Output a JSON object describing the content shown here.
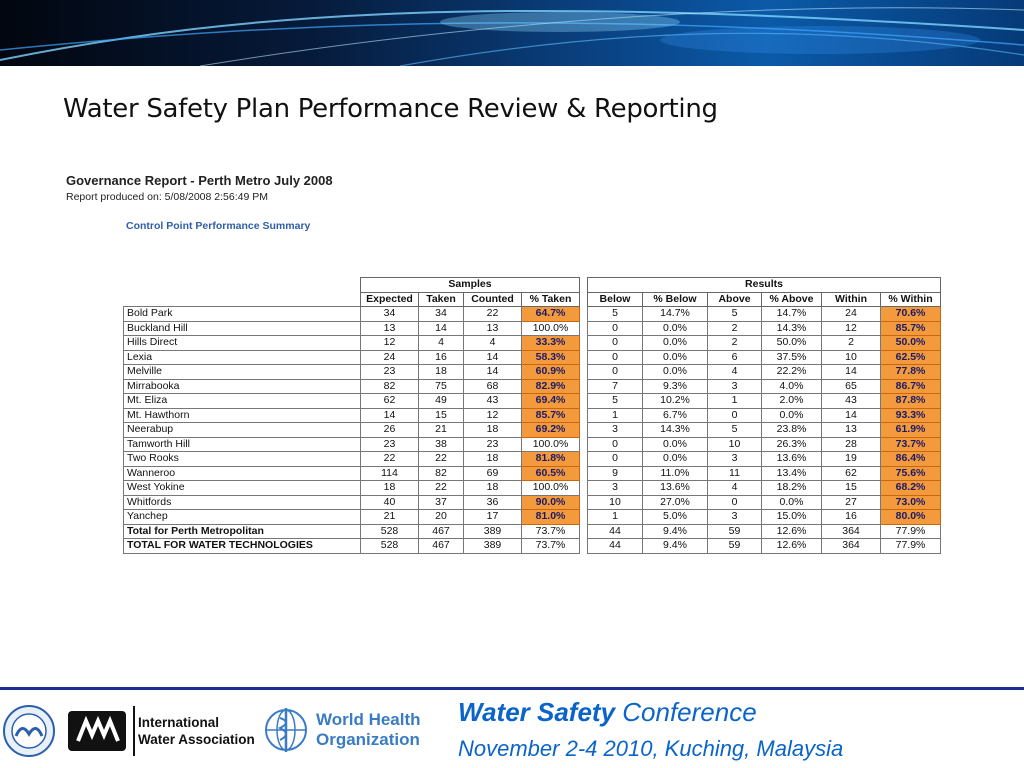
{
  "slide": {
    "title": "Water Safety Plan Performance Review & Reporting"
  },
  "report": {
    "title": "Governance Report - Perth Metro July 2008",
    "produced": "Report produced on: 5/08/2008 2:56:49 PM",
    "section": "Control Point Performance Summary"
  },
  "table": {
    "groups": {
      "samples": "Samples",
      "results": "Results"
    },
    "headers": [
      "Expected",
      "Taken",
      "Counted",
      "% Taken",
      "Below",
      "% Below",
      "Above",
      "% Above",
      "Within",
      "% Within"
    ],
    "rows": [
      {
        "name": "Bold Park",
        "cells": [
          "34",
          "34",
          "22",
          "64.7%",
          "5",
          "14.7%",
          "5",
          "14.7%",
          "24",
          "70.6%"
        ],
        "hl_taken": true,
        "hl_within": true
      },
      {
        "name": "Buckland Hill",
        "cells": [
          "13",
          "14",
          "13",
          "100.0%",
          "0",
          "0.0%",
          "2",
          "14.3%",
          "12",
          "85.7%"
        ],
        "hl_taken": false,
        "hl_within": true
      },
      {
        "name": "Hills Direct",
        "cells": [
          "12",
          "4",
          "4",
          "33.3%",
          "0",
          "0.0%",
          "2",
          "50.0%",
          "2",
          "50.0%"
        ],
        "hl_taken": true,
        "hl_within": true
      },
      {
        "name": "Lexia",
        "cells": [
          "24",
          "16",
          "14",
          "58.3%",
          "0",
          "0.0%",
          "6",
          "37.5%",
          "10",
          "62.5%"
        ],
        "hl_taken": true,
        "hl_within": true
      },
      {
        "name": "Melville",
        "cells": [
          "23",
          "18",
          "14",
          "60.9%",
          "0",
          "0.0%",
          "4",
          "22.2%",
          "14",
          "77.8%"
        ],
        "hl_taken": true,
        "hl_within": true
      },
      {
        "name": "Mirrabooka",
        "cells": [
          "82",
          "75",
          "68",
          "82.9%",
          "7",
          "9.3%",
          "3",
          "4.0%",
          "65",
          "86.7%"
        ],
        "hl_taken": true,
        "hl_within": true
      },
      {
        "name": "Mt. Eliza",
        "cells": [
          "62",
          "49",
          "43",
          "69.4%",
          "5",
          "10.2%",
          "1",
          "2.0%",
          "43",
          "87.8%"
        ],
        "hl_taken": true,
        "hl_within": true
      },
      {
        "name": "Mt. Hawthorn",
        "cells": [
          "14",
          "15",
          "12",
          "85.7%",
          "1",
          "6.7%",
          "0",
          "0.0%",
          "14",
          "93.3%"
        ],
        "hl_taken": true,
        "hl_within": true
      },
      {
        "name": "Neerabup",
        "cells": [
          "26",
          "21",
          "18",
          "69.2%",
          "3",
          "14.3%",
          "5",
          "23.8%",
          "13",
          "61.9%"
        ],
        "hl_taken": true,
        "hl_within": true
      },
      {
        "name": "Tamworth Hill",
        "cells": [
          "23",
          "38",
          "23",
          "100.0%",
          "0",
          "0.0%",
          "10",
          "26.3%",
          "28",
          "73.7%"
        ],
        "hl_taken": false,
        "hl_within": true
      },
      {
        "name": "Two Rooks",
        "cells": [
          "22",
          "22",
          "18",
          "81.8%",
          "0",
          "0.0%",
          "3",
          "13.6%",
          "19",
          "86.4%"
        ],
        "hl_taken": true,
        "hl_within": true
      },
      {
        "name": "Wanneroo",
        "cells": [
          "114",
          "82",
          "69",
          "60.5%",
          "9",
          "11.0%",
          "11",
          "13.4%",
          "62",
          "75.6%"
        ],
        "hl_taken": true,
        "hl_within": true
      },
      {
        "name": "West Yokine",
        "cells": [
          "18",
          "22",
          "18",
          "100.0%",
          "3",
          "13.6%",
          "4",
          "18.2%",
          "15",
          "68.2%"
        ],
        "hl_taken": false,
        "hl_within": true
      },
      {
        "name": "Whitfords",
        "cells": [
          "40",
          "37",
          "36",
          "90.0%",
          "10",
          "27.0%",
          "0",
          "0.0%",
          "27",
          "73.0%"
        ],
        "hl_taken": true,
        "hl_within": true
      },
      {
        "name": "Yanchep",
        "cells": [
          "21",
          "20",
          "17",
          "81.0%",
          "1",
          "5.0%",
          "3",
          "15.0%",
          "16",
          "80.0%"
        ],
        "hl_taken": true,
        "hl_within": true
      },
      {
        "name": "Total for Perth Metropolitan",
        "cells": [
          "528",
          "467",
          "389",
          "73.7%",
          "44",
          "9.4%",
          "59",
          "12.6%",
          "364",
          "77.9%"
        ],
        "hl_taken": false,
        "hl_within": false,
        "total": true
      },
      {
        "name": "TOTAL FOR WATER TECHNOLOGIES",
        "cells": [
          "528",
          "467",
          "389",
          "73.7%",
          "44",
          "9.4%",
          "59",
          "12.6%",
          "364",
          "77.9%"
        ],
        "hl_taken": false,
        "hl_within": false,
        "total": true
      }
    ],
    "highlight_color": "#f39a3c"
  },
  "footer": {
    "logos": {
      "iwa_mark": "IWA",
      "iwa_name_line1": "International",
      "iwa_name_line2": "Water Association",
      "who_name_line1": "World Health",
      "who_name_line2": "Organization"
    },
    "conference_bold": "Water Safety",
    "conference_rest": " Conference",
    "conference_date": "November 2-4 2010, Kuching, Malaysia",
    "accent_color": "#0b64c8"
  }
}
